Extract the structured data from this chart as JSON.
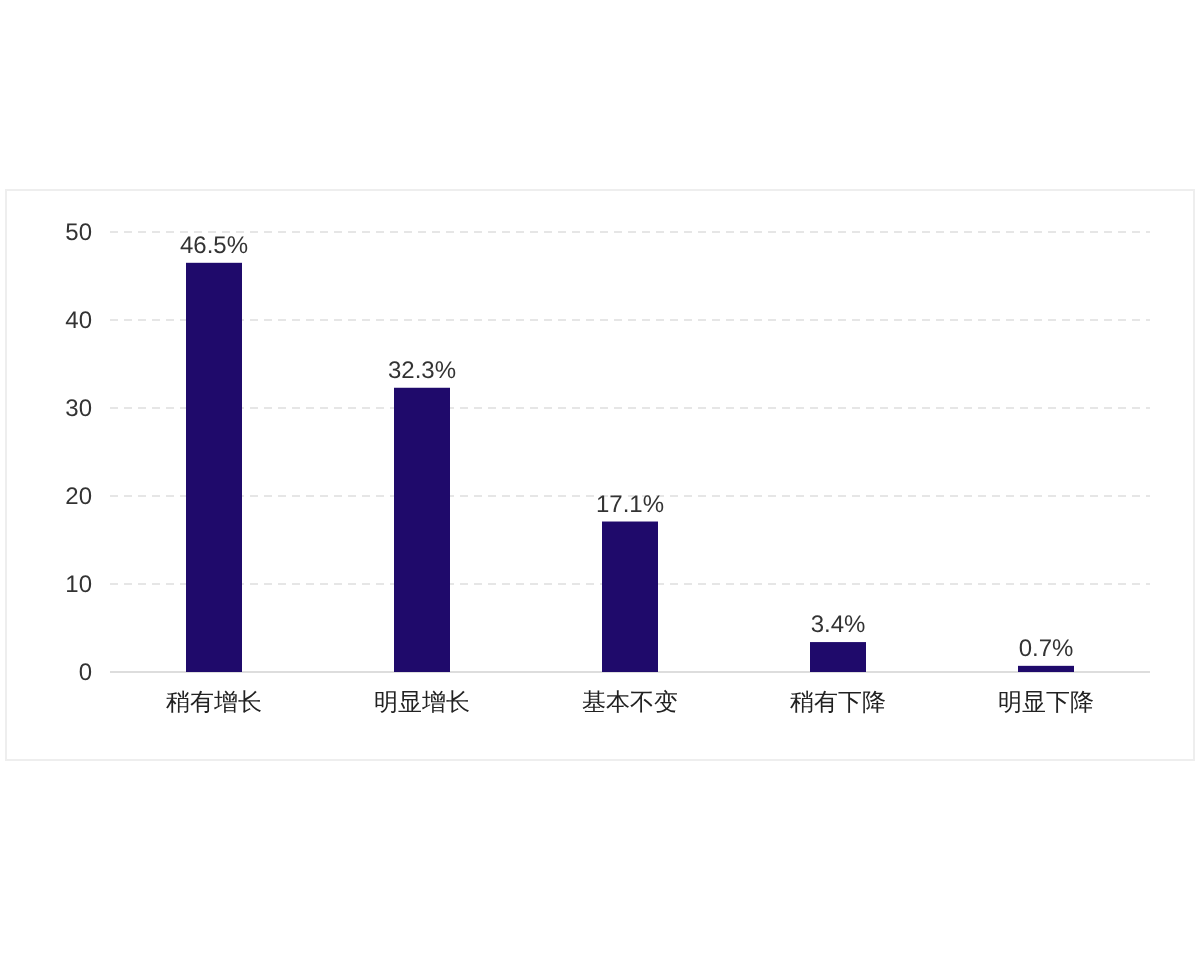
{
  "chart_data": {
    "type": "bar",
    "categories": [
      "稍有增长",
      "明显增长",
      "基本不变",
      "稍有下降",
      "明显下降"
    ],
    "values": [
      46.5,
      32.3,
      17.1,
      3.4,
      0.7
    ],
    "value_labels": [
      "46.5%",
      "32.3%",
      "17.1%",
      "3.4%",
      "0.7%"
    ],
    "color": "#1f0a6b",
    "ylim": [
      0,
      50
    ],
    "yticks": [
      0,
      10,
      20,
      30,
      40,
      50
    ],
    "grid": "y"
  }
}
